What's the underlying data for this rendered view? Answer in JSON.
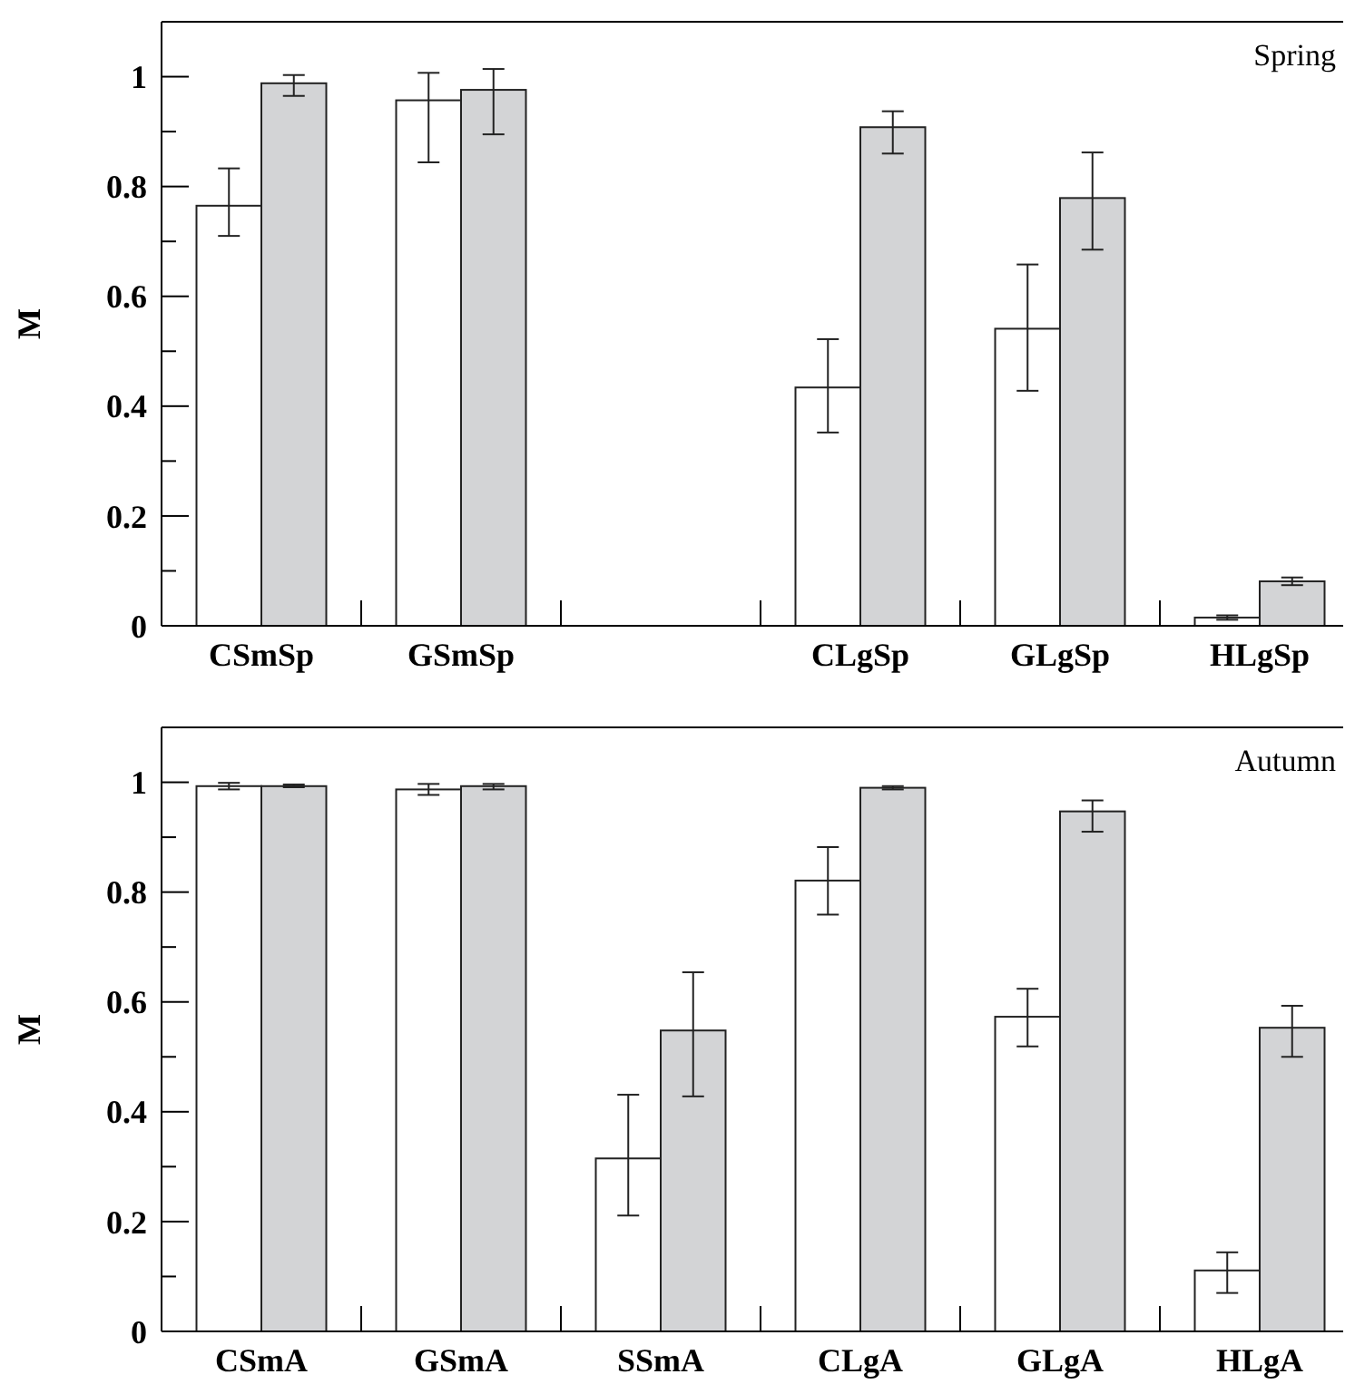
{
  "chart_data": [
    {
      "type": "bar",
      "title": "Spring",
      "ylabel": "M",
      "categories": [
        "CSmSp",
        "GSmSp",
        null,
        "CLgSp",
        "GLgSp",
        "HLgSp"
      ],
      "ylim": [
        0,
        1.1
      ],
      "yticks": [
        0,
        {
          "value": 0.1,
          "label": null
        },
        0.2,
        {
          "value": 0.3,
          "label": null
        },
        0.4,
        {
          "value": 0.5,
          "label": null
        },
        0.6,
        {
          "value": 0.7,
          "label": null
        },
        0.8,
        {
          "value": 0.9,
          "label": null
        },
        1
      ],
      "grid": false,
      "series": [
        {
          "color": "#ffffff",
          "values": [
            0.765,
            0.957,
            null,
            0.434,
            0.541,
            0.015
          ],
          "errors": [
            [
              0.71,
              0.833
            ],
            [
              0.844,
              1.007
            ],
            null,
            [
              0.352,
              0.522
            ],
            [
              0.428,
              0.658
            ],
            [
              0.011,
              0.019
            ]
          ]
        },
        {
          "color": "#d3d4d6",
          "values": [
            0.988,
            0.976,
            null,
            0.908,
            0.779,
            0.081
          ],
          "errors": [
            [
              0.965,
              1.003
            ],
            [
              0.895,
              1.014
            ],
            null,
            [
              0.86,
              0.937
            ],
            [
              0.685,
              0.862
            ],
            [
              0.074,
              0.088
            ]
          ]
        }
      ]
    },
    {
      "type": "bar",
      "title": "Autumn",
      "ylabel": "M",
      "categories": [
        "CSmA",
        "GSmA",
        "SSmA",
        "CLgA",
        "GLgA",
        "HLgA"
      ],
      "ylim": [
        0,
        1.1
      ],
      "yticks": [
        0,
        {
          "value": 0.1,
          "label": null
        },
        0.2,
        {
          "value": 0.3,
          "label": null
        },
        0.4,
        {
          "value": 0.5,
          "label": null
        },
        0.6,
        {
          "value": 0.7,
          "label": null
        },
        0.8,
        {
          "value": 0.9,
          "label": null
        },
        1
      ],
      "grid": false,
      "series": [
        {
          "color": "#ffffff",
          "values": [
            0.993,
            0.987,
            0.315,
            0.821,
            0.573,
            0.111
          ],
          "errors": [
            [
              0.987,
              0.999
            ],
            [
              0.977,
              0.997
            ],
            [
              0.211,
              0.431
            ],
            [
              0.759,
              0.882
            ],
            [
              0.519,
              0.624
            ],
            [
              0.07,
              0.144
            ]
          ]
        },
        {
          "color": "#d3d4d6",
          "values": [
            0.993,
            0.993,
            0.548,
            0.99,
            0.947,
            0.553
          ],
          "errors": [
            [
              0.991,
              0.996
            ],
            [
              0.987,
              0.997
            ],
            [
              0.428,
              0.654
            ],
            [
              0.987,
              0.993
            ],
            [
              0.91,
              0.967
            ],
            [
              0.5,
              0.593
            ]
          ]
        }
      ]
    }
  ]
}
